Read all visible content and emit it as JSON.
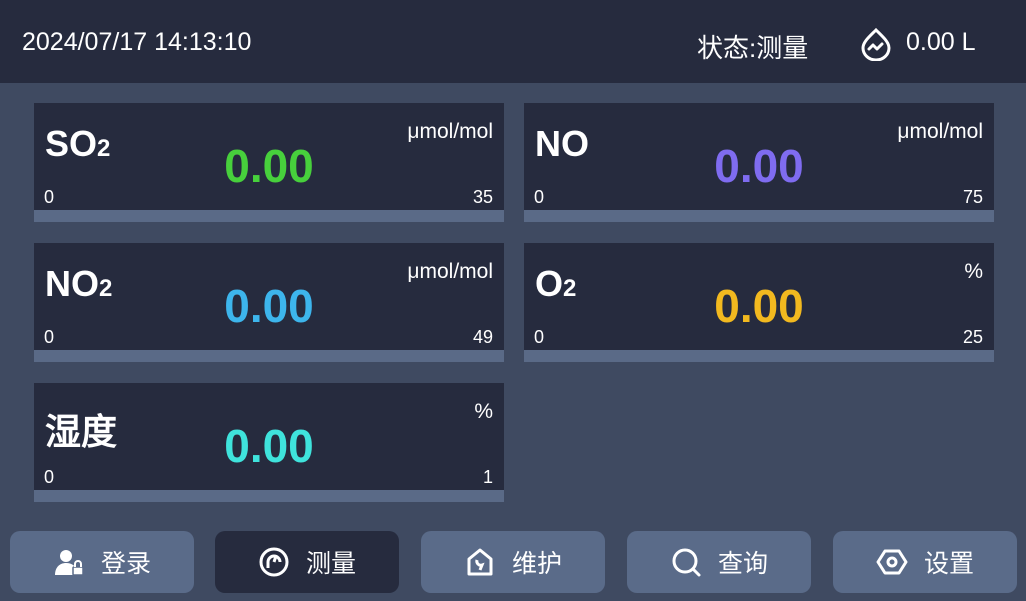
{
  "header": {
    "datetime": "2024/07/17 14:13:10",
    "status": "状态:测量",
    "volume": "0.00 L",
    "volume_icon": "water-drop-wave-icon"
  },
  "cards": [
    {
      "name": "SO",
      "sub": "2",
      "value": "0.00",
      "unit": "μmol/mol",
      "min": "0",
      "max": "35",
      "color": "#47d03c"
    },
    {
      "name": "NO",
      "sub": "",
      "value": "0.00",
      "unit": "μmol/mol",
      "min": "0",
      "max": "75",
      "color": "#7f6cf0"
    },
    {
      "name": "NO",
      "sub": "2",
      "value": "0.00",
      "unit": "μmol/mol",
      "min": "0",
      "max": "49",
      "color": "#3db5ec"
    },
    {
      "name": "O",
      "sub": "2",
      "value": "0.00",
      "unit": "%",
      "min": "0",
      "max": "25",
      "color": "#f2b91f"
    },
    {
      "name": "湿度",
      "sub": "",
      "value": "0.00",
      "unit": "%",
      "min": "0",
      "max": "1",
      "color": "#3fe3dc"
    }
  ],
  "nav": [
    {
      "label": "登录",
      "icon": "user-lock-icon",
      "active": false
    },
    {
      "label": "测量",
      "icon": "gauge-icon",
      "active": true
    },
    {
      "label": "维护",
      "icon": "wrench-house-icon",
      "active": false
    },
    {
      "label": "查询",
      "icon": "search-icon",
      "active": false
    },
    {
      "label": "设置",
      "icon": "settings-icon",
      "active": false
    }
  ]
}
